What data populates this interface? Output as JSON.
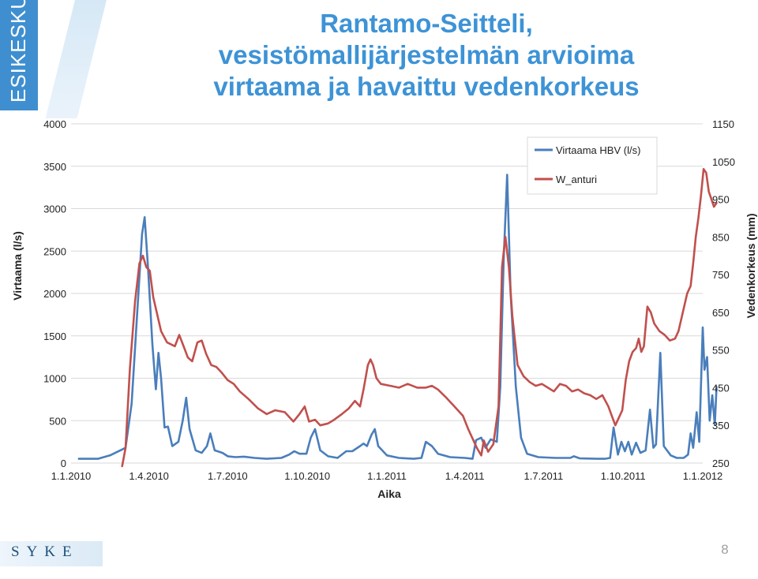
{
  "brand": {
    "side_text": "ESIKESKUS",
    "logo_text": "SYKE"
  },
  "slide": {
    "title_lines": [
      "Rantamo-Seitteli,",
      "vesistömallijärjestelmän arvioima",
      "virtaama ja havaittu vedenkorkeus"
    ],
    "page_number": "8"
  },
  "chart_data": {
    "type": "line",
    "xlabel": "Aika",
    "ylabel_left": "Virtaama (l/s)",
    "ylabel_right": "Vedenkorkeus (mm)",
    "x_ticks": [
      "1.1.2010",
      "1.4.2010",
      "1.7.2010",
      "1.10.2010",
      "1.1.2011",
      "1.4.2011",
      "1.7.2011",
      "1.10.2011",
      "1.1.2012"
    ],
    "y_left_ticks": [
      "0",
      "500",
      "1000",
      "1500",
      "2000",
      "2500",
      "3000",
      "3500",
      "4000"
    ],
    "y_right_ticks": [
      "250",
      "350",
      "450",
      "550",
      "650",
      "750",
      "850",
      "950",
      "1050",
      "1150"
    ],
    "ylim_left": [
      0,
      4000
    ],
    "ylim_right": [
      250,
      1150
    ],
    "grid": "horizontal",
    "legend_position": "top-right",
    "series": [
      {
        "name": "Virtaama HBV (l/s)",
        "axis": "left",
        "color": "#4a7ebb",
        "points": [
          [
            "2010-01-10",
            50
          ],
          [
            "2010-02-01",
            50
          ],
          [
            "2010-02-15",
            90
          ],
          [
            "2010-03-01",
            160
          ],
          [
            "2010-03-05",
            180
          ],
          [
            "2010-03-12",
            700
          ],
          [
            "2010-03-18",
            1700
          ],
          [
            "2010-03-24",
            2700
          ],
          [
            "2010-03-27",
            2900
          ],
          [
            "2010-03-31",
            2300
          ],
          [
            "2010-04-05",
            1400
          ],
          [
            "2010-04-09",
            870
          ],
          [
            "2010-04-12",
            1300
          ],
          [
            "2010-04-15",
            1000
          ],
          [
            "2010-04-19",
            420
          ],
          [
            "2010-04-23",
            430
          ],
          [
            "2010-04-28",
            200
          ],
          [
            "2010-05-05",
            250
          ],
          [
            "2010-05-10",
            500
          ],
          [
            "2010-05-14",
            770
          ],
          [
            "2010-05-18",
            400
          ],
          [
            "2010-05-25",
            150
          ],
          [
            "2010-06-01",
            120
          ],
          [
            "2010-06-07",
            200
          ],
          [
            "2010-06-11",
            350
          ],
          [
            "2010-06-16",
            150
          ],
          [
            "2010-06-25",
            120
          ],
          [
            "2010-07-01",
            80
          ],
          [
            "2010-07-10",
            70
          ],
          [
            "2010-07-20",
            75
          ],
          [
            "2010-08-01",
            60
          ],
          [
            "2010-08-15",
            50
          ],
          [
            "2010-09-01",
            60
          ],
          [
            "2010-09-10",
            100
          ],
          [
            "2010-09-16",
            140
          ],
          [
            "2010-09-22",
            110
          ],
          [
            "2010-09-30",
            110
          ],
          [
            "2010-10-05",
            300
          ],
          [
            "2010-10-10",
            400
          ],
          [
            "2010-10-16",
            150
          ],
          [
            "2010-10-25",
            80
          ],
          [
            "2010-11-05",
            60
          ],
          [
            "2010-11-15",
            140
          ],
          [
            "2010-11-22",
            140
          ],
          [
            "2010-12-01",
            200
          ],
          [
            "2010-12-05",
            230
          ],
          [
            "2010-12-09",
            200
          ],
          [
            "2010-12-14",
            330
          ],
          [
            "2010-12-18",
            400
          ],
          [
            "2010-12-22",
            200
          ],
          [
            "2011-01-01",
            90
          ],
          [
            "2011-01-15",
            60
          ],
          [
            "2011-02-01",
            50
          ],
          [
            "2011-02-10",
            60
          ],
          [
            "2011-02-15",
            250
          ],
          [
            "2011-02-22",
            200
          ],
          [
            "2011-03-01",
            110
          ],
          [
            "2011-03-15",
            70
          ],
          [
            "2011-04-01",
            60
          ],
          [
            "2011-04-10",
            50
          ],
          [
            "2011-04-14",
            270
          ],
          [
            "2011-04-20",
            300
          ],
          [
            "2011-04-25",
            180
          ],
          [
            "2011-05-01",
            280
          ],
          [
            "2011-05-08",
            250
          ],
          [
            "2011-05-12",
            900
          ],
          [
            "2011-05-16",
            2400
          ],
          [
            "2011-05-20",
            3400
          ],
          [
            "2011-05-24",
            2000
          ],
          [
            "2011-05-30",
            900
          ],
          [
            "2011-06-05",
            300
          ],
          [
            "2011-06-12",
            110
          ],
          [
            "2011-06-25",
            70
          ],
          [
            "2011-07-15",
            60
          ],
          [
            "2011-08-01",
            60
          ],
          [
            "2011-08-05",
            80
          ],
          [
            "2011-08-12",
            55
          ],
          [
            "2011-09-01",
            50
          ],
          [
            "2011-09-10",
            50
          ],
          [
            "2011-09-16",
            60
          ],
          [
            "2011-09-20",
            420
          ],
          [
            "2011-09-25",
            100
          ],
          [
            "2011-09-29",
            250
          ],
          [
            "2011-10-03",
            140
          ],
          [
            "2011-10-07",
            250
          ],
          [
            "2011-10-11",
            100
          ],
          [
            "2011-10-16",
            240
          ],
          [
            "2011-10-21",
            120
          ],
          [
            "2011-10-27",
            150
          ],
          [
            "2011-11-01",
            630
          ],
          [
            "2011-11-05",
            180
          ],
          [
            "2011-11-08",
            220
          ],
          [
            "2011-11-13",
            1300
          ],
          [
            "2011-11-17",
            200
          ],
          [
            "2011-11-25",
            90
          ],
          [
            "2011-12-02",
            60
          ],
          [
            "2011-12-10",
            60
          ],
          [
            "2011-12-15",
            100
          ],
          [
            "2011-12-18",
            350
          ],
          [
            "2011-12-21",
            180
          ],
          [
            "2011-12-25",
            600
          ],
          [
            "2011-12-28",
            250
          ],
          [
            "2012-01-01",
            1600
          ],
          [
            "2012-01-03",
            1100
          ],
          [
            "2012-01-06",
            1250
          ],
          [
            "2012-01-09",
            500
          ],
          [
            "2012-01-12",
            800
          ],
          [
            "2012-01-15",
            450
          ],
          [
            "2012-01-17",
            900
          ]
        ]
      },
      {
        "name": "W_anturi",
        "axis": "right",
        "color": "#c0504d",
        "points": [
          [
            "2010-03-01",
            240
          ],
          [
            "2010-03-05",
            290
          ],
          [
            "2010-03-10",
            500
          ],
          [
            "2010-03-16",
            680
          ],
          [
            "2010-03-21",
            780
          ],
          [
            "2010-03-25",
            800
          ],
          [
            "2010-03-29",
            770
          ],
          [
            "2010-04-02",
            760
          ],
          [
            "2010-04-06",
            690
          ],
          [
            "2010-04-10",
            650
          ],
          [
            "2010-04-15",
            600
          ],
          [
            "2010-04-22",
            570
          ],
          [
            "2010-05-01",
            560
          ],
          [
            "2010-05-06",
            590
          ],
          [
            "2010-05-11",
            560
          ],
          [
            "2010-05-16",
            530
          ],
          [
            "2010-05-21",
            520
          ],
          [
            "2010-05-27",
            570
          ],
          [
            "2010-06-01",
            575
          ],
          [
            "2010-06-06",
            540
          ],
          [
            "2010-06-12",
            510
          ],
          [
            "2010-06-18",
            505
          ],
          [
            "2010-06-24",
            490
          ],
          [
            "2010-07-01",
            470
          ],
          [
            "2010-07-08",
            460
          ],
          [
            "2010-07-15",
            440
          ],
          [
            "2010-07-25",
            420
          ],
          [
            "2010-08-05",
            395
          ],
          [
            "2010-08-15",
            380
          ],
          [
            "2010-08-25",
            390
          ],
          [
            "2010-09-05",
            385
          ],
          [
            "2010-09-15",
            360
          ],
          [
            "2010-09-22",
            380
          ],
          [
            "2010-09-28",
            400
          ],
          [
            "2010-10-03",
            360
          ],
          [
            "2010-10-10",
            365
          ],
          [
            "2010-10-16",
            350
          ],
          [
            "2010-10-25",
            355
          ],
          [
            "2010-11-01",
            365
          ],
          [
            "2010-11-10",
            380
          ],
          [
            "2010-11-18",
            395
          ],
          [
            "2010-11-25",
            415
          ],
          [
            "2010-12-01",
            400
          ],
          [
            "2010-12-05",
            445
          ],
          [
            "2010-12-10",
            510
          ],
          [
            "2010-12-13",
            525
          ],
          [
            "2010-12-16",
            510
          ],
          [
            "2010-12-20",
            475
          ],
          [
            "2010-12-25",
            460
          ],
          [
            "2011-01-05",
            455
          ],
          [
            "2011-01-15",
            450
          ],
          [
            "2011-01-25",
            460
          ],
          [
            "2011-02-05",
            450
          ],
          [
            "2011-02-15",
            450
          ],
          [
            "2011-02-22",
            455
          ],
          [
            "2011-03-01",
            445
          ],
          [
            "2011-03-10",
            425
          ],
          [
            "2011-03-20",
            400
          ],
          [
            "2011-03-30",
            375
          ],
          [
            "2011-04-05",
            340
          ],
          [
            "2011-04-10",
            315
          ],
          [
            "2011-04-15",
            290
          ],
          [
            "2011-04-20",
            270
          ],
          [
            "2011-04-23",
            310
          ],
          [
            "2011-04-28",
            280
          ],
          [
            "2011-05-04",
            300
          ],
          [
            "2011-05-10",
            400
          ],
          [
            "2011-05-14",
            770
          ],
          [
            "2011-05-18",
            850
          ],
          [
            "2011-05-22",
            770
          ],
          [
            "2011-05-26",
            640
          ],
          [
            "2011-06-01",
            510
          ],
          [
            "2011-06-08",
            480
          ],
          [
            "2011-06-15",
            465
          ],
          [
            "2011-06-22",
            455
          ],
          [
            "2011-06-29",
            460
          ],
          [
            "2011-07-06",
            450
          ],
          [
            "2011-07-13",
            440
          ],
          [
            "2011-07-20",
            460
          ],
          [
            "2011-07-27",
            455
          ],
          [
            "2011-08-03",
            440
          ],
          [
            "2011-08-10",
            445
          ],
          [
            "2011-08-17",
            435
          ],
          [
            "2011-08-24",
            430
          ],
          [
            "2011-08-31",
            420
          ],
          [
            "2011-09-07",
            430
          ],
          [
            "2011-09-14",
            400
          ],
          [
            "2011-09-18",
            375
          ],
          [
            "2011-09-22",
            350
          ],
          [
            "2011-09-26",
            370
          ],
          [
            "2011-09-30",
            390
          ],
          [
            "2011-10-04",
            470
          ],
          [
            "2011-10-08",
            520
          ],
          [
            "2011-10-12",
            545
          ],
          [
            "2011-10-16",
            555
          ],
          [
            "2011-10-19",
            580
          ],
          [
            "2011-10-22",
            545
          ],
          [
            "2011-10-25",
            560
          ],
          [
            "2011-10-29",
            665
          ],
          [
            "2011-11-02",
            650
          ],
          [
            "2011-11-06",
            620
          ],
          [
            "2011-11-12",
            600
          ],
          [
            "2011-11-18",
            590
          ],
          [
            "2011-11-24",
            575
          ],
          [
            "2011-11-30",
            580
          ],
          [
            "2011-12-04",
            600
          ],
          [
            "2011-12-09",
            650
          ],
          [
            "2011-12-14",
            700
          ],
          [
            "2011-12-18",
            720
          ],
          [
            "2011-12-21",
            780
          ],
          [
            "2011-12-24",
            850
          ],
          [
            "2011-12-27",
            900
          ],
          [
            "2011-12-30",
            960
          ],
          [
            "2012-01-02",
            1030
          ],
          [
            "2012-01-05",
            1020
          ],
          [
            "2012-01-08",
            970
          ],
          [
            "2012-01-11",
            950
          ],
          [
            "2012-01-14",
            930
          ],
          [
            "2012-01-17",
            940
          ]
        ]
      }
    ]
  }
}
